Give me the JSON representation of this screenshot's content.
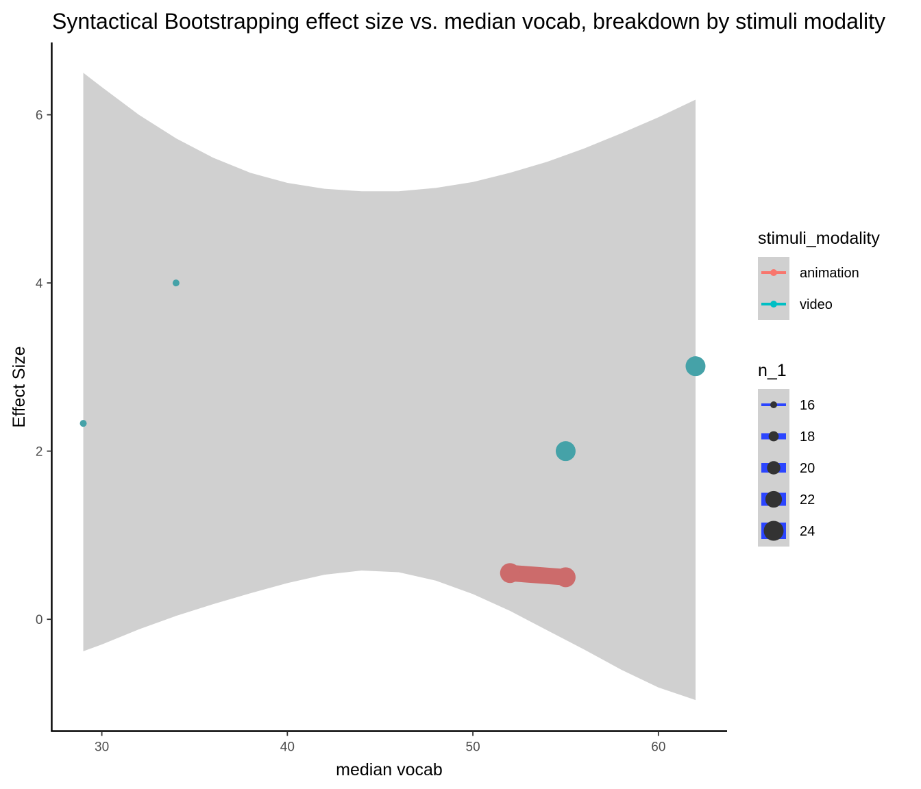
{
  "chart_data": {
    "type": "scatter",
    "title": "Syntactical Bootstrapping effect size vs. median vocab, breakdown by stimuli modality",
    "xlabel": "median vocab",
    "ylabel": "Effect Size",
    "xlim": [
      27.3,
      63.7
    ],
    "ylim": [
      -1.33,
      6.86
    ],
    "x_ticks": [
      30,
      40,
      50,
      60
    ],
    "y_ticks": [
      0,
      2,
      4,
      6
    ],
    "grid": false,
    "smooth_band": {
      "x": [
        29,
        30,
        32,
        34,
        36,
        38,
        40,
        42,
        44,
        46,
        48,
        50,
        52,
        54,
        56,
        58,
        60,
        62
      ],
      "upper": [
        6.5,
        6.33,
        6.0,
        5.72,
        5.49,
        5.31,
        5.19,
        5.12,
        5.09,
        5.09,
        5.13,
        5.2,
        5.31,
        5.44,
        5.6,
        5.78,
        5.97,
        6.18
      ],
      "lower": [
        -0.38,
        -0.3,
        -0.12,
        0.04,
        0.18,
        0.31,
        0.43,
        0.53,
        0.58,
        0.56,
        0.46,
        0.3,
        0.1,
        -0.13,
        -0.36,
        -0.6,
        -0.81,
        -0.96
      ]
    },
    "series": [
      {
        "name": "animation",
        "color": "#CC6B6B",
        "line": true,
        "points": [
          {
            "x": 52,
            "y": 0.55,
            "n_1": 24
          },
          {
            "x": 55,
            "y": 0.5,
            "n_1": 24
          }
        ]
      },
      {
        "name": "video",
        "color": "#45A2A8",
        "line": false,
        "points": [
          {
            "x": 29,
            "y": 2.33,
            "n_1": 16
          },
          {
            "x": 34,
            "y": 4.0,
            "n_1": 16
          },
          {
            "x": 55,
            "y": 2.0,
            "n_1": 24
          },
          {
            "x": 62,
            "y": 3.01,
            "n_1": 24
          }
        ]
      }
    ],
    "legend": {
      "placement": "right",
      "color_title": "stimuli_modality",
      "color_items": [
        {
          "label": "animation",
          "color": "#F8766D"
        },
        {
          "label": "video",
          "color": "#00BFC4"
        }
      ],
      "size_title": "n_1",
      "size_items": [
        "16",
        "18",
        "20",
        "22",
        "24"
      ],
      "size_color": "#2B45FF"
    }
  }
}
